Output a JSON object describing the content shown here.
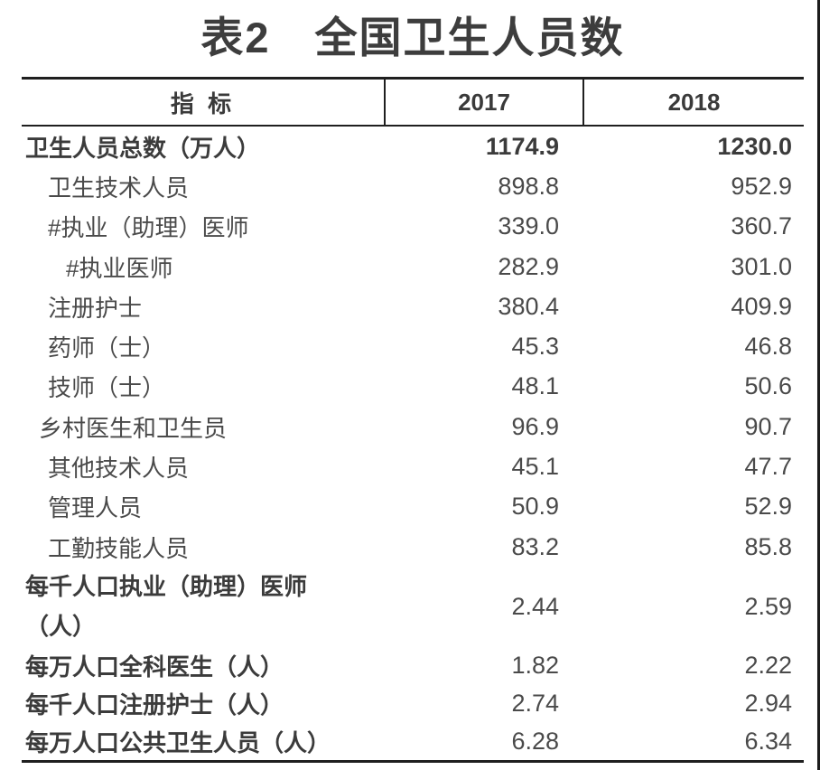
{
  "title": "表2　全国卫生人员数",
  "colors": {
    "background": "#ffffff",
    "border": "#1f1f1f",
    "text_regular": "#4a4a4a",
    "text_bold": "#3b3b3b",
    "right_edge_line": "#1c1c1c"
  },
  "table": {
    "columns": [
      "指 标",
      "2017",
      "2018"
    ],
    "rows": [
      {
        "label": "卫生人员总数（万人）",
        "v2017": "1174.9",
        "v2018": "1230.0"
      },
      {
        "label": "卫生技术人员",
        "v2017": "898.8",
        "v2018": "952.9"
      },
      {
        "label": "#执业（助理）医师",
        "v2017": "339.0",
        "v2018": "360.7"
      },
      {
        "label": "#执业医师",
        "v2017": "282.9",
        "v2018": "301.0"
      },
      {
        "label": "注册护士",
        "v2017": "380.4",
        "v2018": "409.9"
      },
      {
        "label": "药师（士）",
        "v2017": "45.3",
        "v2018": "46.8"
      },
      {
        "label": "技师（士）",
        "v2017": "48.1",
        "v2018": "50.6"
      },
      {
        "label": "乡村医生和卫生员",
        "v2017": "96.9",
        "v2018": "90.7"
      },
      {
        "label": "其他技术人员",
        "v2017": "45.1",
        "v2018": "47.7"
      },
      {
        "label": "管理人员",
        "v2017": "50.9",
        "v2018": "52.9"
      },
      {
        "label": "工勤技能人员",
        "v2017": "83.2",
        "v2018": "85.8"
      },
      {
        "label": "每千人口执业（助理）医师",
        "label_line2": "（人）",
        "v2017": "2.44",
        "v2018": "2.59"
      },
      {
        "label": "每万人口全科医生（人）",
        "v2017": "1.82",
        "v2018": "2.22"
      },
      {
        "label": "每千人口注册护士（人）",
        "v2017": "2.74",
        "v2018": "2.94"
      },
      {
        "label": "每万人口公共卫生人员（人）",
        "v2017": "6.28",
        "v2018": "6.34"
      }
    ]
  }
}
